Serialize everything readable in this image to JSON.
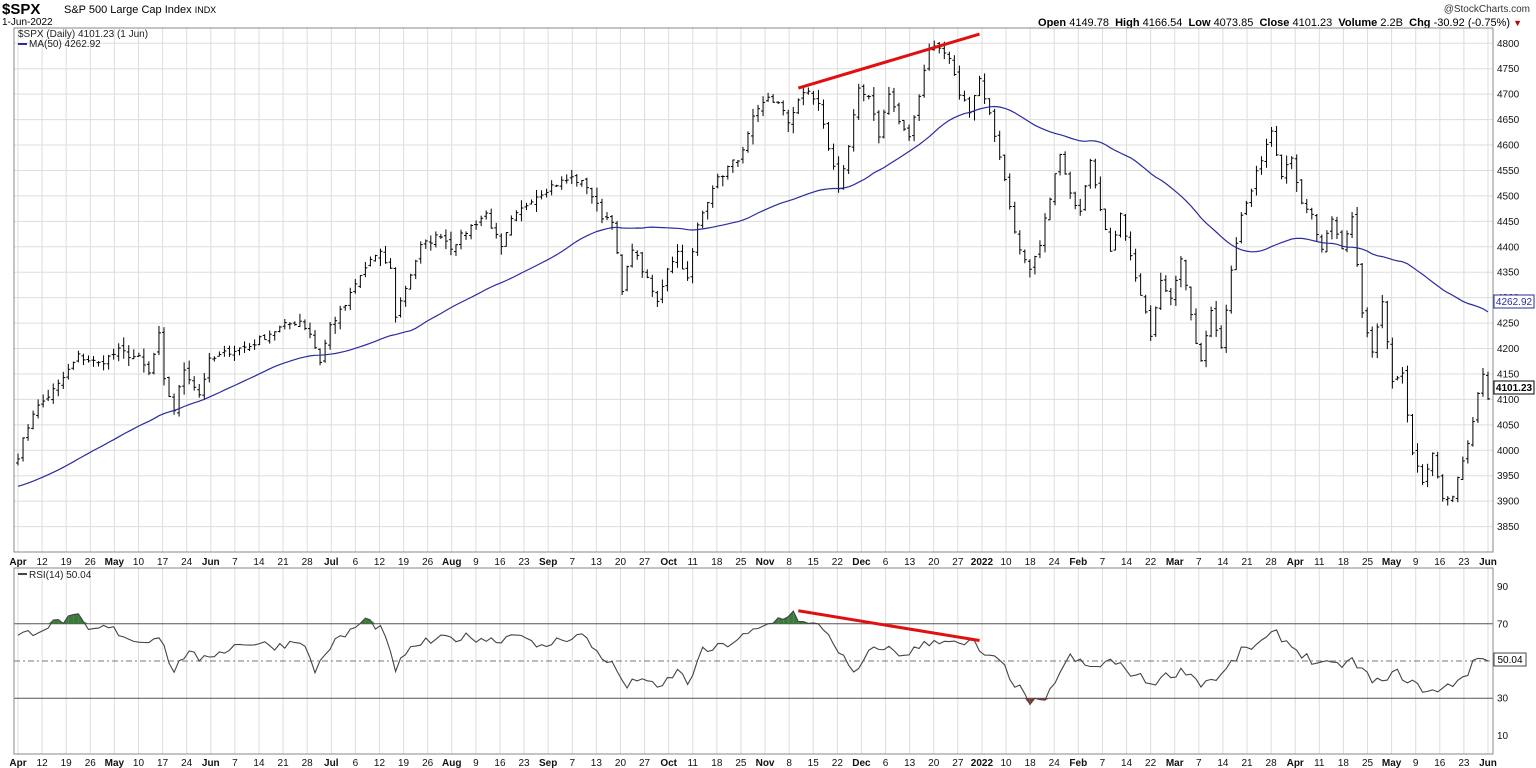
{
  "header": {
    "symbol": "$SPX",
    "name": "S&P 500 Large Cap Index",
    "exchange": "INDX",
    "date": "1-Jun-2022",
    "copyright": "@StockCharts.com",
    "open_label": "Open",
    "open": "4149.78",
    "high_label": "High",
    "high": "4166.54",
    "low_label": "Low",
    "low": "4073.85",
    "close_label": "Close",
    "close": "4101.23",
    "volume_label": "Volume",
    "volume": "2.2B",
    "chg_label": "Chg",
    "chg": "-30.92 (-0.75%)"
  },
  "colors": {
    "price_bars": "#000000",
    "ma_line": "#2b2b9e",
    "trendline": "#e01010",
    "rsi_overbought_fill": "#3a7a3a",
    "rsi_oversold_fill": "#8a3a2a",
    "grid": "#dddddd"
  },
  "chart_data": [
    {
      "type": "ohlc",
      "legend": [
        "$SPX (Daily) 4101.23 (1 Jun)",
        "MA(50) 4262.92"
      ],
      "ylim": [
        3800,
        4830
      ],
      "y_ticks": [
        3850,
        3900,
        3950,
        4000,
        4050,
        4100,
        4150,
        4200,
        4250,
        4300,
        4350,
        4400,
        4450,
        4500,
        4550,
        4600,
        4650,
        4700,
        4750,
        4800
      ],
      "last_price_label": "4101.23",
      "ma_label": "4262.92",
      "x_labels": [
        "Apr",
        "12",
        "19",
        "26",
        "May",
        "10",
        "17",
        "24",
        "Jun",
        "7",
        "14",
        "21",
        "28",
        "Jul",
        "6",
        "12",
        "19",
        "26",
        "Aug",
        "9",
        "16",
        "23",
        "Sep",
        "7",
        "13",
        "20",
        "27",
        "Oct",
        "11",
        "18",
        "25",
        "Nov",
        "8",
        "15",
        "22",
        "Dec",
        "6",
        "13",
        "20",
        "27",
        "2022",
        "10",
        "18",
        "24",
        "Feb",
        "7",
        "14",
        "22",
        "Mar",
        "7",
        "14",
        "21",
        "28",
        "Apr",
        "11",
        "18",
        "25",
        "May",
        "9",
        "16",
        "23",
        "Jun"
      ],
      "close_anchors": [
        {
          "bar": 0,
          "close": 3990
        },
        {
          "bar": 3,
          "close": 4075
        },
        {
          "bar": 8,
          "close": 4128
        },
        {
          "bar": 12,
          "close": 4185
        },
        {
          "bar": 16,
          "close": 4170
        },
        {
          "bar": 20,
          "close": 4195
        },
        {
          "bar": 24,
          "close": 4180
        },
        {
          "bar": 26,
          "close": 4150
        },
        {
          "bar": 28,
          "close": 4225
        },
        {
          "bar": 29,
          "close": 4135
        },
        {
          "bar": 31,
          "close": 4080
        },
        {
          "bar": 33,
          "close": 4160
        },
        {
          "bar": 36,
          "close": 4110
        },
        {
          "bar": 38,
          "close": 4175
        },
        {
          "bar": 42,
          "close": 4195
        },
        {
          "bar": 46,
          "close": 4205
        },
        {
          "bar": 50,
          "close": 4230
        },
        {
          "bar": 53,
          "close": 4245
        },
        {
          "bar": 56,
          "close": 4255
        },
        {
          "bar": 58,
          "close": 4230
        },
        {
          "bar": 60,
          "close": 4175
        },
        {
          "bar": 62,
          "close": 4245
        },
        {
          "bar": 65,
          "close": 4285
        },
        {
          "bar": 67,
          "close": 4325
        },
        {
          "bar": 70,
          "close": 4375
        },
        {
          "bar": 72,
          "close": 4385
        },
        {
          "bar": 74,
          "close": 4355
        },
        {
          "bar": 75,
          "close": 4265
        },
        {
          "bar": 77,
          "close": 4320
        },
        {
          "bar": 80,
          "close": 4400
        },
        {
          "bar": 84,
          "close": 4425
        },
        {
          "bar": 86,
          "close": 4400
        },
        {
          "bar": 90,
          "close": 4440
        },
        {
          "bar": 93,
          "close": 4465
        },
        {
          "bar": 96,
          "close": 4395
        },
        {
          "bar": 98,
          "close": 4450
        },
        {
          "bar": 102,
          "close": 4495
        },
        {
          "bar": 106,
          "close": 4520
        },
        {
          "bar": 110,
          "close": 4535
        },
        {
          "bar": 113,
          "close": 4520
        },
        {
          "bar": 116,
          "close": 4460
        },
        {
          "bar": 118,
          "close": 4455
        },
        {
          "bar": 120,
          "close": 4310
        },
        {
          "bar": 122,
          "close": 4400
        },
        {
          "bar": 124,
          "close": 4355
        },
        {
          "bar": 127,
          "close": 4290
        },
        {
          "bar": 129,
          "close": 4360
        },
        {
          "bar": 131,
          "close": 4390
        },
        {
          "bar": 133,
          "close": 4335
        },
        {
          "bar": 135,
          "close": 4440
        },
        {
          "bar": 138,
          "close": 4520
        },
        {
          "bar": 141,
          "close": 4555
        },
        {
          "bar": 144,
          "close": 4585
        },
        {
          "bar": 146,
          "close": 4650
        },
        {
          "bar": 149,
          "close": 4695
        },
        {
          "bar": 151,
          "close": 4680
        },
        {
          "bar": 153,
          "close": 4645
        },
        {
          "bar": 155,
          "close": 4690
        },
        {
          "bar": 157,
          "close": 4705
        },
        {
          "bar": 159,
          "close": 4680
        },
        {
          "bar": 161,
          "close": 4595
        },
        {
          "bar": 163,
          "close": 4515
        },
        {
          "bar": 165,
          "close": 4600
        },
        {
          "bar": 167,
          "close": 4705
        },
        {
          "bar": 169,
          "close": 4690
        },
        {
          "bar": 171,
          "close": 4620
        },
        {
          "bar": 173,
          "close": 4705
        },
        {
          "bar": 175,
          "close": 4645
        },
        {
          "bar": 177,
          "close": 4610
        },
        {
          "bar": 179,
          "close": 4700
        },
        {
          "bar": 181,
          "close": 4795
        },
        {
          "bar": 183,
          "close": 4790
        },
        {
          "bar": 185,
          "close": 4770
        },
        {
          "bar": 187,
          "close": 4700
        },
        {
          "bar": 189,
          "close": 4670
        },
        {
          "bar": 191,
          "close": 4730
        },
        {
          "bar": 193,
          "close": 4660
        },
        {
          "bar": 195,
          "close": 4580
        },
        {
          "bar": 197,
          "close": 4480
        },
        {
          "bar": 199,
          "close": 4390
        },
        {
          "bar": 201,
          "close": 4350
        },
        {
          "bar": 203,
          "close": 4400
        },
        {
          "bar": 205,
          "close": 4500
        },
        {
          "bar": 207,
          "close": 4580
        },
        {
          "bar": 209,
          "close": 4500
        },
        {
          "bar": 211,
          "close": 4475
        },
        {
          "bar": 213,
          "close": 4575
        },
        {
          "bar": 215,
          "close": 4480
        },
        {
          "bar": 217,
          "close": 4385
        },
        {
          "bar": 219,
          "close": 4470
        },
        {
          "bar": 221,
          "close": 4380
        },
        {
          "bar": 223,
          "close": 4305
        },
        {
          "bar": 225,
          "close": 4225
        },
        {
          "bar": 227,
          "close": 4330
        },
        {
          "bar": 229,
          "close": 4300
        },
        {
          "bar": 231,
          "close": 4380
        },
        {
          "bar": 233,
          "close": 4260
        },
        {
          "bar": 235,
          "close": 4170
        },
        {
          "bar": 237,
          "close": 4280
        },
        {
          "bar": 239,
          "close": 4200
        },
        {
          "bar": 241,
          "close": 4360
        },
        {
          "bar": 243,
          "close": 4460
        },
        {
          "bar": 245,
          "close": 4510
        },
        {
          "bar": 247,
          "close": 4575
        },
        {
          "bar": 249,
          "close": 4630
        },
        {
          "bar": 251,
          "close": 4545
        },
        {
          "bar": 253,
          "close": 4580
        },
        {
          "bar": 255,
          "close": 4480
        },
        {
          "bar": 257,
          "close": 4460
        },
        {
          "bar": 259,
          "close": 4390
        },
        {
          "bar": 261,
          "close": 4450
        },
        {
          "bar": 263,
          "close": 4395
        },
        {
          "bar": 265,
          "close": 4460
        },
        {
          "bar": 267,
          "close": 4270
        },
        {
          "bar": 269,
          "close": 4190
        },
        {
          "bar": 271,
          "close": 4290
        },
        {
          "bar": 273,
          "close": 4130
        },
        {
          "bar": 275,
          "close": 4145
        },
        {
          "bar": 277,
          "close": 3995
        },
        {
          "bar": 279,
          "close": 3930
        },
        {
          "bar": 281,
          "close": 4000
        },
        {
          "bar": 283,
          "close": 3900
        },
        {
          "bar": 285,
          "close": 3905
        },
        {
          "bar": 287,
          "close": 3975
        },
        {
          "bar": 289,
          "close": 4060
        },
        {
          "bar": 291,
          "close": 4155
        },
        {
          "bar": 292,
          "close": 4101
        }
      ],
      "trendline": [
        {
          "bar": 155,
          "value": 4712
        },
        {
          "bar": 191,
          "value": 4818
        }
      ]
    },
    {
      "type": "line",
      "legend": [
        "RSI(14) 50.04"
      ],
      "ylim": [
        0,
        100
      ],
      "y_ticks": [
        10,
        30,
        50,
        70,
        90
      ],
      "last_value_label": "50.04",
      "rsi_anchors": [
        {
          "bar": 0,
          "value": 63
        },
        {
          "bar": 5,
          "value": 68
        },
        {
          "bar": 9,
          "value": 72
        },
        {
          "bar": 12,
          "value": 73
        },
        {
          "bar": 14,
          "value": 66
        },
        {
          "bar": 18,
          "value": 68
        },
        {
          "bar": 24,
          "value": 60
        },
        {
          "bar": 28,
          "value": 64
        },
        {
          "bar": 31,
          "value": 44
        },
        {
          "bar": 34,
          "value": 57
        },
        {
          "bar": 36,
          "value": 48
        },
        {
          "bar": 38,
          "value": 53
        },
        {
          "bar": 45,
          "value": 60
        },
        {
          "bar": 52,
          "value": 58
        },
        {
          "bar": 56,
          "value": 62
        },
        {
          "bar": 59,
          "value": 45
        },
        {
          "bar": 62,
          "value": 58
        },
        {
          "bar": 66,
          "value": 66
        },
        {
          "bar": 69,
          "value": 72
        },
        {
          "bar": 72,
          "value": 68
        },
        {
          "bar": 75,
          "value": 46
        },
        {
          "bar": 79,
          "value": 59
        },
        {
          "bar": 85,
          "value": 62
        },
        {
          "bar": 90,
          "value": 63
        },
        {
          "bar": 95,
          "value": 61
        },
        {
          "bar": 100,
          "value": 66
        },
        {
          "bar": 103,
          "value": 56
        },
        {
          "bar": 108,
          "value": 62
        },
        {
          "bar": 112,
          "value": 64
        },
        {
          "bar": 115,
          "value": 55
        },
        {
          "bar": 118,
          "value": 48
        },
        {
          "bar": 121,
          "value": 36
        },
        {
          "bar": 124,
          "value": 42
        },
        {
          "bar": 127,
          "value": 34
        },
        {
          "bar": 131,
          "value": 45
        },
        {
          "bar": 133,
          "value": 38
        },
        {
          "bar": 136,
          "value": 55
        },
        {
          "bar": 140,
          "value": 58
        },
        {
          "bar": 144,
          "value": 63
        },
        {
          "bar": 148,
          "value": 68
        },
        {
          "bar": 152,
          "value": 74
        },
        {
          "bar": 154,
          "value": 76
        },
        {
          "bar": 156,
          "value": 70
        },
        {
          "bar": 160,
          "value": 68
        },
        {
          "bar": 163,
          "value": 56
        },
        {
          "bar": 166,
          "value": 42
        },
        {
          "bar": 169,
          "value": 54
        },
        {
          "bar": 172,
          "value": 58
        },
        {
          "bar": 175,
          "value": 53
        },
        {
          "bar": 178,
          "value": 56
        },
        {
          "bar": 181,
          "value": 60
        },
        {
          "bar": 184,
          "value": 62
        },
        {
          "bar": 187,
          "value": 58
        },
        {
          "bar": 190,
          "value": 60
        },
        {
          "bar": 192,
          "value": 52
        },
        {
          "bar": 195,
          "value": 50
        },
        {
          "bar": 198,
          "value": 38
        },
        {
          "bar": 201,
          "value": 28
        },
        {
          "bar": 204,
          "value": 27
        },
        {
          "bar": 206,
          "value": 40
        },
        {
          "bar": 209,
          "value": 52
        },
        {
          "bar": 213,
          "value": 46
        },
        {
          "bar": 217,
          "value": 50
        },
        {
          "bar": 221,
          "value": 44
        },
        {
          "bar": 225,
          "value": 38
        },
        {
          "bar": 229,
          "value": 43
        },
        {
          "bar": 232,
          "value": 45
        },
        {
          "bar": 235,
          "value": 38
        },
        {
          "bar": 239,
          "value": 42
        },
        {
          "bar": 243,
          "value": 55
        },
        {
          "bar": 247,
          "value": 60
        },
        {
          "bar": 250,
          "value": 65
        },
        {
          "bar": 253,
          "value": 58
        },
        {
          "bar": 257,
          "value": 50
        },
        {
          "bar": 261,
          "value": 47
        },
        {
          "bar": 265,
          "value": 50
        },
        {
          "bar": 268,
          "value": 42
        },
        {
          "bar": 271,
          "value": 38
        },
        {
          "bar": 274,
          "value": 44
        },
        {
          "bar": 278,
          "value": 36
        },
        {
          "bar": 282,
          "value": 33
        },
        {
          "bar": 285,
          "value": 38
        },
        {
          "bar": 288,
          "value": 44
        },
        {
          "bar": 290,
          "value": 52
        },
        {
          "bar": 292,
          "value": 50
        }
      ],
      "trendline": [
        {
          "bar": 155,
          "value": 77
        },
        {
          "bar": 191,
          "value": 61
        }
      ]
    }
  ]
}
